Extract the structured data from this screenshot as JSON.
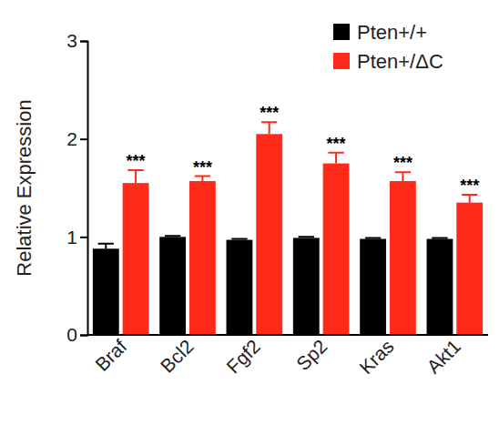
{
  "chart_data": {
    "type": "bar",
    "y_label": "Relative Expression",
    "categories": [
      "Braf",
      "Bcl2",
      "Fgf2",
      "Sp2",
      "Kras",
      "Akt1"
    ],
    "series": [
      {
        "name": "Pten+/+",
        "color": "#000000",
        "values": [
          0.88,
          1.0,
          0.97,
          0.99,
          0.98,
          0.98
        ],
        "errors": [
          0.05,
          0.01,
          0.01,
          0.01,
          0.01,
          0.01
        ]
      },
      {
        "name": "Pten+/ΔC",
        "color": "#ff2a1a",
        "values": [
          1.55,
          1.57,
          2.05,
          1.75,
          1.57,
          1.35
        ],
        "errors": [
          0.13,
          0.05,
          0.12,
          0.11,
          0.09,
          0.08
        ]
      }
    ],
    "annotations": [
      "***",
      "***",
      "***",
      "***",
      "***",
      "***"
    ],
    "ylim": [
      0,
      3
    ],
    "yticks": [
      0,
      1,
      2,
      3
    ],
    "grid": false,
    "legend": "upper right"
  }
}
